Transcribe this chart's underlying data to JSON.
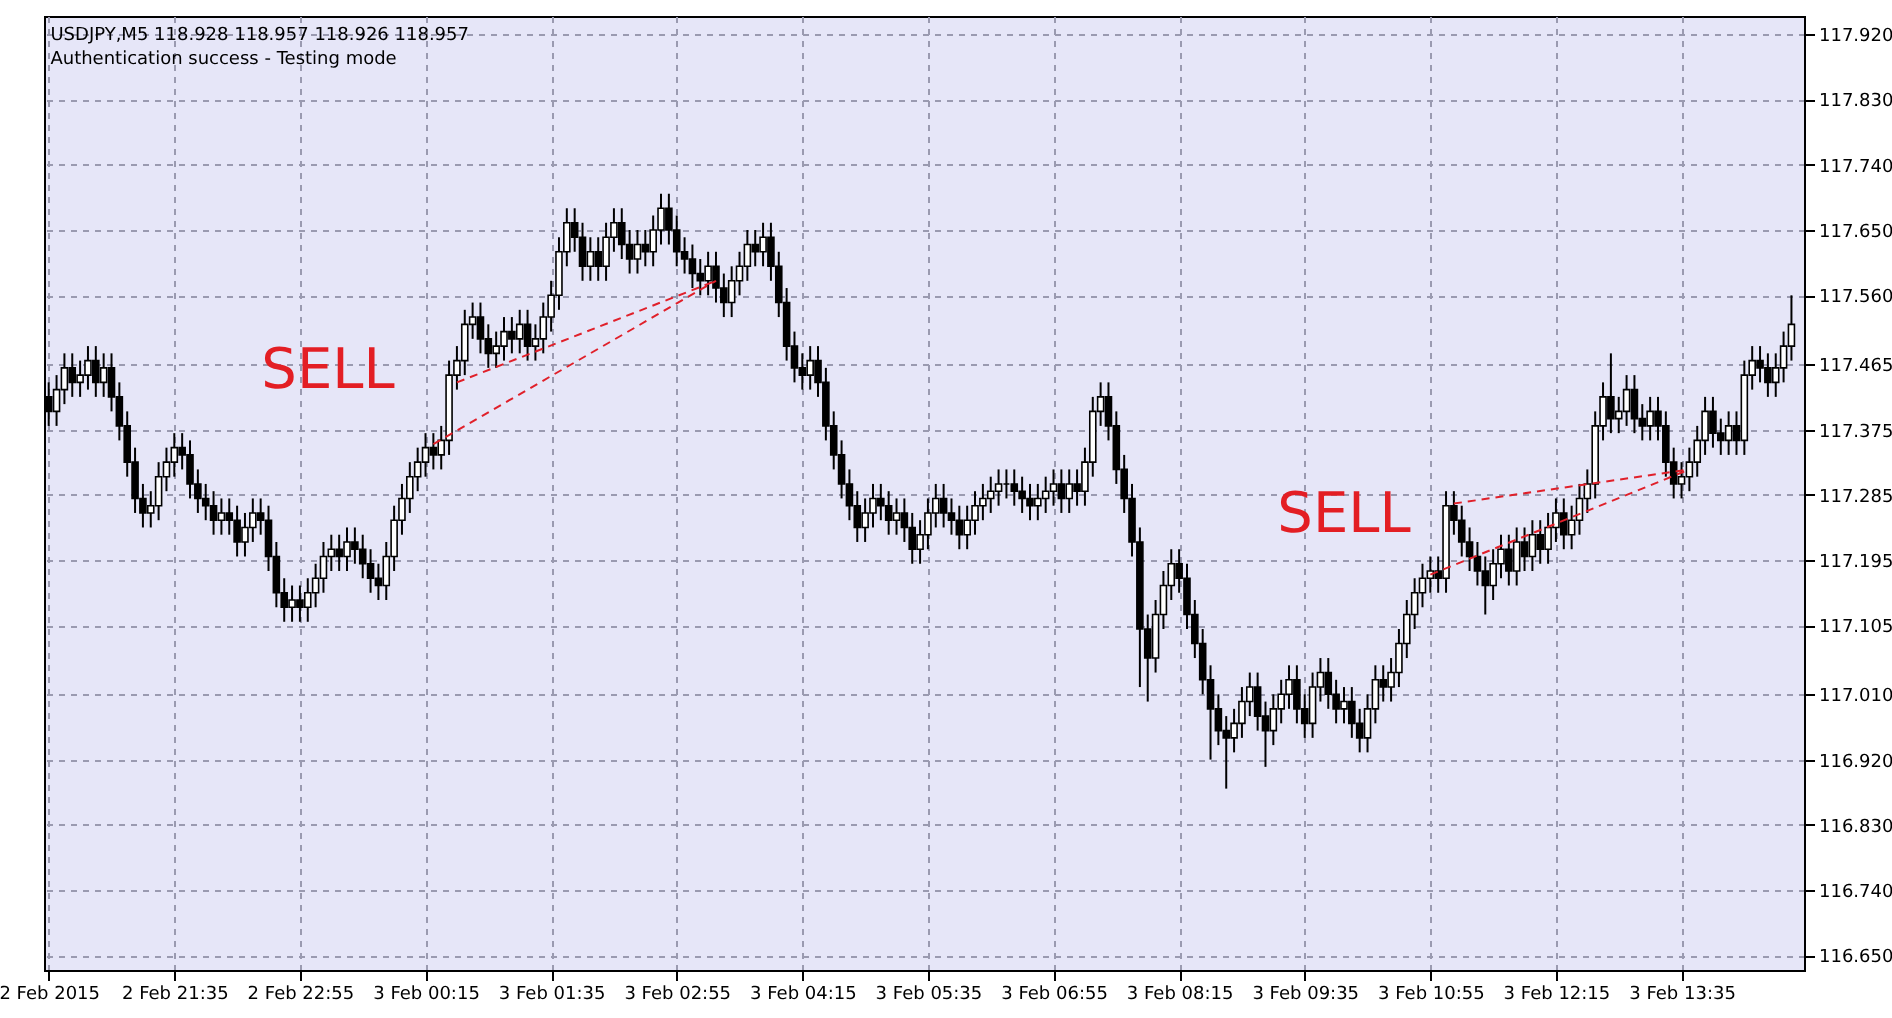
{
  "chart_data": {
    "type": "candlestick",
    "title": "USDJPY,M5  118.928 118.957 118.926 118.957",
    "subtitle": "Authentication success - Testing mode",
    "x": [
      "2015-02-02T20:15",
      "2015-02-02T20:20",
      "2015-02-02T20:25",
      "2015-02-02T20:30",
      "2015-02-02T20:35",
      "2015-02-02T20:40",
      "2015-02-02T20:45",
      "2015-02-02T20:50",
      "2015-02-02T20:55",
      "2015-02-02T21:00",
      "2015-02-02T21:05",
      "2015-02-02T21:10",
      "2015-02-02T21:15",
      "2015-02-02T21:20",
      "2015-02-02T21:25",
      "2015-02-02T21:30",
      "2015-02-02T21:35",
      "2015-02-02T21:40",
      "2015-02-02T21:45",
      "2015-02-02T21:50",
      "2015-02-02T21:55",
      "2015-02-02T22:00",
      "2015-02-02T22:05",
      "2015-02-02T22:10",
      "2015-02-02T22:15",
      "2015-02-02T22:20",
      "2015-02-02T22:25",
      "2015-02-02T22:30",
      "2015-02-02T22:35",
      "2015-02-02T22:40",
      "2015-02-02T22:45",
      "2015-02-02T22:50",
      "2015-02-02T22:55",
      "2015-02-02T23:00",
      "2015-02-02T23:05",
      "2015-02-02T23:10",
      "2015-02-02T23:15",
      "2015-02-02T23:20",
      "2015-02-02T23:25",
      "2015-02-02T23:30",
      "2015-02-02T23:35",
      "2015-02-02T23:40",
      "2015-02-02T23:45",
      "2015-02-02T23:50",
      "2015-02-02T23:55",
      "2015-02-03T00:00",
      "2015-02-03T00:05",
      "2015-02-03T00:10",
      "2015-02-03T00:15",
      "2015-02-03T00:20",
      "2015-02-03T00:25",
      "2015-02-03T00:30",
      "2015-02-03T00:35",
      "2015-02-03T00:40",
      "2015-02-03T00:45",
      "2015-02-03T00:50",
      "2015-02-03T00:55",
      "2015-02-03T01:00",
      "2015-02-03T01:05",
      "2015-02-03T01:10",
      "2015-02-03T01:15",
      "2015-02-03T01:20",
      "2015-02-03T01:25",
      "2015-02-03T01:30",
      "2015-02-03T01:35",
      "2015-02-03T01:40",
      "2015-02-03T01:45",
      "2015-02-03T01:50",
      "2015-02-03T01:55",
      "2015-02-03T02:00",
      "2015-02-03T02:05",
      "2015-02-03T02:10",
      "2015-02-03T02:15",
      "2015-02-03T02:20",
      "2015-02-03T02:25",
      "2015-02-03T02:30",
      "2015-02-03T02:35",
      "2015-02-03T02:40",
      "2015-02-03T02:45",
      "2015-02-03T02:50",
      "2015-02-03T02:55",
      "2015-02-03T03:00",
      "2015-02-03T03:05",
      "2015-02-03T03:10",
      "2015-02-03T03:15",
      "2015-02-03T03:20",
      "2015-02-03T03:25",
      "2015-02-03T03:30",
      "2015-02-03T03:35",
      "2015-02-03T03:40",
      "2015-02-03T03:45",
      "2015-02-03T03:50",
      "2015-02-03T03:55",
      "2015-02-03T04:00",
      "2015-02-03T04:05",
      "2015-02-03T04:10",
      "2015-02-03T04:15",
      "2015-02-03T04:20",
      "2015-02-03T04:25",
      "2015-02-03T04:30",
      "2015-02-03T04:35",
      "2015-02-03T04:40",
      "2015-02-03T04:45",
      "2015-02-03T04:50",
      "2015-02-03T04:55",
      "2015-02-03T05:00",
      "2015-02-03T05:05",
      "2015-02-03T05:10",
      "2015-02-03T05:15",
      "2015-02-03T05:20",
      "2015-02-03T05:25",
      "2015-02-03T05:30",
      "2015-02-03T05:35",
      "2015-02-03T05:40",
      "2015-02-03T05:45",
      "2015-02-03T05:50",
      "2015-02-03T05:55",
      "2015-02-03T06:00",
      "2015-02-03T06:05",
      "2015-02-03T06:10",
      "2015-02-03T06:15",
      "2015-02-03T06:20",
      "2015-02-03T06:25",
      "2015-02-03T06:30",
      "2015-02-03T06:35",
      "2015-02-03T06:40",
      "2015-02-03T06:45",
      "2015-02-03T06:50",
      "2015-02-03T06:55",
      "2015-02-03T07:00",
      "2015-02-03T07:05",
      "2015-02-03T07:10",
      "2015-02-03T07:15",
      "2015-02-03T07:20",
      "2015-02-03T07:25",
      "2015-02-03T07:30",
      "2015-02-03T07:35",
      "2015-02-03T07:40",
      "2015-02-03T07:45",
      "2015-02-03T07:50",
      "2015-02-03T07:55",
      "2015-02-03T08:00",
      "2015-02-03T08:05",
      "2015-02-03T08:10",
      "2015-02-03T08:15",
      "2015-02-03T08:20",
      "2015-02-03T08:25",
      "2015-02-03T08:30",
      "2015-02-03T08:35",
      "2015-02-03T08:40",
      "2015-02-03T08:45",
      "2015-02-03T08:50",
      "2015-02-03T08:55",
      "2015-02-03T09:00",
      "2015-02-03T09:05",
      "2015-02-03T09:10",
      "2015-02-03T09:15",
      "2015-02-03T09:20",
      "2015-02-03T09:25",
      "2015-02-03T09:30",
      "2015-02-03T09:35",
      "2015-02-03T09:40",
      "2015-02-03T09:45",
      "2015-02-03T09:50",
      "2015-02-03T09:55",
      "2015-02-03T10:00",
      "2015-02-03T10:05",
      "2015-02-03T10:10",
      "2015-02-03T10:15",
      "2015-02-03T10:20",
      "2015-02-03T10:25",
      "2015-02-03T10:30",
      "2015-02-03T10:35",
      "2015-02-03T10:40",
      "2015-02-03T10:45",
      "2015-02-03T10:50",
      "2015-02-03T10:55",
      "2015-02-03T11:00",
      "2015-02-03T11:05",
      "2015-02-03T11:10",
      "2015-02-03T11:15",
      "2015-02-03T11:20",
      "2015-02-03T11:25",
      "2015-02-03T11:30",
      "2015-02-03T11:35",
      "2015-02-03T11:40",
      "2015-02-03T11:45",
      "2015-02-03T11:50",
      "2015-02-03T11:55",
      "2015-02-03T12:00",
      "2015-02-03T12:05",
      "2015-02-03T12:10",
      "2015-02-03T12:15",
      "2015-02-03T12:20",
      "2015-02-03T12:25",
      "2015-02-03T12:30",
      "2015-02-03T12:35",
      "2015-02-03T12:40",
      "2015-02-03T12:45",
      "2015-02-03T12:50",
      "2015-02-03T12:55",
      "2015-02-03T13:00",
      "2015-02-03T13:05",
      "2015-02-03T13:10",
      "2015-02-03T13:15",
      "2015-02-03T13:20",
      "2015-02-03T13:25",
      "2015-02-03T13:30",
      "2015-02-03T13:35",
      "2015-02-03T13:40",
      "2015-02-03T13:45",
      "2015-02-03T13:50",
      "2015-02-03T13:55",
      "2015-02-03T14:00",
      "2015-02-03T14:05",
      "2015-02-03T14:10",
      "2015-02-03T14:15",
      "2015-02-03T14:20",
      "2015-02-03T14:25",
      "2015-02-03T14:30",
      "2015-02-03T14:35",
      "2015-02-03T14:40",
      "2015-02-03T14:45"
    ],
    "ohlc": [
      [
        117.42,
        117.44,
        117.38,
        117.4
      ],
      [
        117.4,
        117.45,
        117.38,
        117.43
      ],
      [
        117.43,
        117.48,
        117.41,
        117.46
      ],
      [
        117.46,
        117.48,
        117.42,
        117.44
      ],
      [
        117.44,
        117.47,
        117.42,
        117.45
      ],
      [
        117.45,
        117.49,
        117.43,
        117.47
      ],
      [
        117.47,
        117.49,
        117.42,
        117.44
      ],
      [
        117.44,
        117.48,
        117.42,
        117.46
      ],
      [
        117.46,
        117.48,
        117.4,
        117.42
      ],
      [
        117.42,
        117.44,
        117.36,
        117.38
      ],
      [
        117.38,
        117.4,
        117.31,
        117.33
      ],
      [
        117.33,
        117.35,
        117.26,
        117.28
      ],
      [
        117.28,
        117.3,
        117.24,
        117.26
      ],
      [
        117.26,
        117.29,
        117.24,
        117.27
      ],
      [
        117.27,
        117.33,
        117.25,
        117.31
      ],
      [
        117.31,
        117.35,
        117.29,
        117.33
      ],
      [
        117.33,
        117.37,
        117.31,
        117.35
      ],
      [
        117.35,
        117.37,
        117.32,
        117.34
      ],
      [
        117.34,
        117.36,
        117.28,
        117.3
      ],
      [
        117.3,
        117.32,
        117.26,
        117.28
      ],
      [
        117.28,
        117.3,
        117.25,
        117.27
      ],
      [
        117.27,
        117.29,
        117.23,
        117.25
      ],
      [
        117.25,
        117.28,
        117.23,
        117.26
      ],
      [
        117.26,
        117.28,
        117.23,
        117.25
      ],
      [
        117.25,
        117.27,
        117.2,
        117.22
      ],
      [
        117.22,
        117.26,
        117.2,
        117.24
      ],
      [
        117.24,
        117.28,
        117.22,
        117.26
      ],
      [
        117.26,
        117.28,
        117.23,
        117.25
      ],
      [
        117.25,
        117.27,
        117.18,
        117.2
      ],
      [
        117.2,
        117.22,
        117.13,
        117.15
      ],
      [
        117.15,
        117.17,
        117.11,
        117.13
      ],
      [
        117.13,
        117.16,
        117.11,
        117.14
      ],
      [
        117.14,
        117.16,
        117.11,
        117.13
      ],
      [
        117.13,
        117.17,
        117.11,
        117.15
      ],
      [
        117.15,
        117.19,
        117.13,
        117.17
      ],
      [
        117.17,
        117.22,
        117.15,
        117.2
      ],
      [
        117.2,
        117.23,
        117.18,
        117.21
      ],
      [
        117.21,
        117.23,
        117.18,
        117.2
      ],
      [
        117.2,
        117.24,
        117.18,
        117.22
      ],
      [
        117.22,
        117.24,
        117.19,
        117.21
      ],
      [
        117.21,
        117.23,
        117.17,
        117.19
      ],
      [
        117.19,
        117.21,
        117.15,
        117.17
      ],
      [
        117.17,
        117.19,
        117.14,
        117.16
      ],
      [
        117.16,
        117.22,
        117.14,
        117.2
      ],
      [
        117.2,
        117.27,
        117.18,
        117.25
      ],
      [
        117.25,
        117.3,
        117.23,
        117.28
      ],
      [
        117.28,
        117.33,
        117.26,
        117.31
      ],
      [
        117.31,
        117.35,
        117.29,
        117.33
      ],
      [
        117.33,
        117.37,
        117.31,
        117.35
      ],
      [
        117.35,
        117.37,
        117.32,
        117.34
      ],
      [
        117.34,
        117.38,
        117.32,
        117.36
      ],
      [
        117.36,
        117.47,
        117.34,
        117.45
      ],
      [
        117.45,
        117.49,
        117.43,
        117.47
      ],
      [
        117.47,
        117.54,
        117.45,
        117.52
      ],
      [
        117.52,
        117.55,
        117.5,
        117.53
      ],
      [
        117.53,
        117.55,
        117.48,
        117.5
      ],
      [
        117.5,
        117.52,
        117.46,
        117.48
      ],
      [
        117.48,
        117.51,
        117.46,
        117.49
      ],
      [
        117.49,
        117.53,
        117.47,
        117.51
      ],
      [
        117.51,
        117.53,
        117.48,
        117.5
      ],
      [
        117.5,
        117.54,
        117.48,
        117.52
      ],
      [
        117.52,
        117.54,
        117.47,
        117.49
      ],
      [
        117.49,
        117.52,
        117.47,
        117.5
      ],
      [
        117.5,
        117.55,
        117.48,
        117.53
      ],
      [
        117.53,
        117.58,
        117.51,
        117.56
      ],
      [
        117.56,
        117.64,
        117.54,
        117.62
      ],
      [
        117.62,
        117.68,
        117.6,
        117.66
      ],
      [
        117.66,
        117.68,
        117.62,
        117.64
      ],
      [
        117.64,
        117.66,
        117.58,
        117.6
      ],
      [
        117.6,
        117.64,
        117.58,
        117.62
      ],
      [
        117.62,
        117.64,
        117.58,
        117.6
      ],
      [
        117.6,
        117.66,
        117.58,
        117.64
      ],
      [
        117.64,
        117.68,
        117.62,
        117.66
      ],
      [
        117.66,
        117.68,
        117.61,
        117.63
      ],
      [
        117.63,
        117.65,
        117.59,
        117.61
      ],
      [
        117.61,
        117.65,
        117.59,
        117.63
      ],
      [
        117.63,
        117.65,
        117.6,
        117.62
      ],
      [
        117.62,
        117.67,
        117.6,
        117.65
      ],
      [
        117.65,
        117.7,
        117.63,
        117.68
      ],
      [
        117.68,
        117.7,
        117.63,
        117.65
      ],
      [
        117.65,
        117.67,
        117.6,
        117.62
      ],
      [
        117.62,
        117.64,
        117.59,
        117.61
      ],
      [
        117.61,
        117.63,
        117.57,
        117.59
      ],
      [
        117.59,
        117.61,
        117.56,
        117.58
      ],
      [
        117.58,
        117.62,
        117.56,
        117.6
      ],
      [
        117.6,
        117.62,
        117.55,
        117.57
      ],
      [
        117.57,
        117.59,
        117.53,
        117.55
      ],
      [
        117.55,
        117.6,
        117.53,
        117.58
      ],
      [
        117.58,
        117.62,
        117.56,
        117.6
      ],
      [
        117.6,
        117.65,
        117.58,
        117.63
      ],
      [
        117.63,
        117.65,
        117.6,
        117.62
      ],
      [
        117.62,
        117.66,
        117.6,
        117.64
      ],
      [
        117.64,
        117.66,
        117.58,
        117.6
      ],
      [
        117.6,
        117.62,
        117.53,
        117.55
      ],
      [
        117.55,
        117.57,
        117.47,
        117.49
      ],
      [
        117.49,
        117.51,
        117.44,
        117.46
      ],
      [
        117.46,
        117.48,
        117.43,
        117.45
      ],
      [
        117.45,
        117.49,
        117.43,
        117.47
      ],
      [
        117.47,
        117.49,
        117.42,
        117.44
      ],
      [
        117.44,
        117.46,
        117.36,
        117.38
      ],
      [
        117.38,
        117.4,
        117.32,
        117.34
      ],
      [
        117.34,
        117.36,
        117.28,
        117.3
      ],
      [
        117.3,
        117.32,
        117.25,
        117.27
      ],
      [
        117.27,
        117.29,
        117.22,
        117.24
      ],
      [
        117.24,
        117.28,
        117.22,
        117.26
      ],
      [
        117.26,
        117.3,
        117.24,
        117.28
      ],
      [
        117.28,
        117.3,
        117.25,
        117.27
      ],
      [
        117.27,
        117.29,
        117.23,
        117.25
      ],
      [
        117.25,
        117.28,
        117.23,
        117.26
      ],
      [
        117.26,
        117.28,
        117.22,
        117.24
      ],
      [
        117.24,
        117.26,
        117.19,
        117.21
      ],
      [
        117.21,
        117.25,
        117.19,
        117.23
      ],
      [
        117.23,
        117.28,
        117.21,
        117.26
      ],
      [
        117.26,
        117.3,
        117.24,
        117.28
      ],
      [
        117.28,
        117.3,
        117.24,
        117.26
      ],
      [
        117.26,
        117.28,
        117.23,
        117.25
      ],
      [
        117.25,
        117.27,
        117.21,
        117.23
      ],
      [
        117.23,
        117.27,
        117.21,
        117.25
      ],
      [
        117.25,
        117.29,
        117.23,
        117.27
      ],
      [
        117.27,
        117.3,
        117.25,
        117.28
      ],
      [
        117.28,
        117.31,
        117.26,
        117.29
      ],
      [
        117.29,
        117.32,
        117.27,
        117.3
      ],
      [
        117.3,
        117.32,
        117.28,
        117.3
      ],
      [
        117.3,
        117.32,
        117.27,
        117.29
      ],
      [
        117.29,
        117.31,
        117.26,
        117.28
      ],
      [
        117.28,
        117.3,
        117.25,
        117.27
      ],
      [
        117.27,
        117.3,
        117.25,
        117.28
      ],
      [
        117.28,
        117.31,
        117.26,
        117.29
      ],
      [
        117.29,
        117.32,
        117.27,
        117.3
      ],
      [
        117.3,
        117.32,
        117.26,
        117.28
      ],
      [
        117.28,
        117.32,
        117.26,
        117.3
      ],
      [
        117.3,
        117.32,
        117.27,
        117.29
      ],
      [
        117.29,
        117.35,
        117.27,
        117.33
      ],
      [
        117.33,
        117.42,
        117.31,
        117.4
      ],
      [
        117.4,
        117.44,
        117.38,
        117.42
      ],
      [
        117.42,
        117.44,
        117.36,
        117.38
      ],
      [
        117.38,
        117.4,
        117.3,
        117.32
      ],
      [
        117.32,
        117.34,
        117.26,
        117.28
      ],
      [
        117.28,
        117.3,
        117.2,
        117.22
      ],
      [
        117.22,
        117.24,
        117.02,
        117.1
      ],
      [
        117.1,
        117.12,
        117.0,
        117.06
      ],
      [
        117.06,
        117.14,
        117.04,
        117.12
      ],
      [
        117.12,
        117.18,
        117.1,
        117.16
      ],
      [
        117.16,
        117.21,
        117.14,
        117.19
      ],
      [
        117.19,
        117.21,
        117.15,
        117.17
      ],
      [
        117.17,
        117.19,
        117.1,
        117.12
      ],
      [
        117.12,
        117.14,
        117.06,
        117.08
      ],
      [
        117.08,
        117.1,
        117.01,
        117.03
      ],
      [
        117.03,
        117.05,
        116.92,
        116.99
      ],
      [
        116.99,
        117.01,
        116.94,
        116.96
      ],
      [
        116.96,
        116.98,
        116.88,
        116.95
      ],
      [
        116.95,
        116.99,
        116.93,
        116.97
      ],
      [
        116.97,
        117.02,
        116.95,
        117.0
      ],
      [
        117.0,
        117.04,
        116.98,
        117.02
      ],
      [
        117.02,
        117.04,
        116.96,
        116.98
      ],
      [
        116.98,
        117.0,
        116.91,
        116.96
      ],
      [
        116.96,
        117.01,
        116.94,
        116.99
      ],
      [
        116.99,
        117.03,
        116.97,
        117.01
      ],
      [
        117.01,
        117.05,
        116.99,
        117.03
      ],
      [
        117.03,
        117.05,
        116.97,
        116.99
      ],
      [
        116.99,
        117.01,
        116.95,
        116.97
      ],
      [
        116.97,
        117.04,
        116.95,
        117.02
      ],
      [
        117.02,
        117.06,
        117.0,
        117.04
      ],
      [
        117.04,
        117.06,
        116.99,
        117.01
      ],
      [
        117.01,
        117.03,
        116.97,
        116.99
      ],
      [
        116.99,
        117.02,
        116.97,
        117.0
      ],
      [
        117.0,
        117.02,
        116.95,
        116.97
      ],
      [
        116.97,
        116.99,
        116.93,
        116.95
      ],
      [
        116.95,
        117.01,
        116.93,
        116.99
      ],
      [
        116.99,
        117.05,
        116.97,
        117.03
      ],
      [
        117.03,
        117.05,
        117.0,
        117.02
      ],
      [
        117.02,
        117.06,
        117.0,
        117.04
      ],
      [
        117.04,
        117.1,
        117.02,
        117.08
      ],
      [
        117.08,
        117.14,
        117.06,
        117.12
      ],
      [
        117.12,
        117.17,
        117.1,
        117.15
      ],
      [
        117.15,
        117.19,
        117.13,
        117.17
      ],
      [
        117.17,
        117.2,
        117.15,
        117.18
      ],
      [
        117.18,
        117.2,
        117.15,
        117.17
      ],
      [
        117.17,
        117.29,
        117.15,
        117.27
      ],
      [
        117.27,
        117.29,
        117.23,
        117.25
      ],
      [
        117.25,
        117.27,
        117.2,
        117.22
      ],
      [
        117.22,
        117.24,
        117.18,
        117.2
      ],
      [
        117.2,
        117.22,
        117.16,
        117.18
      ],
      [
        117.18,
        117.2,
        117.12,
        117.16
      ],
      [
        117.16,
        117.21,
        117.14,
        117.19
      ],
      [
        117.19,
        117.23,
        117.17,
        117.21
      ],
      [
        117.21,
        117.23,
        117.16,
        117.18
      ],
      [
        117.18,
        117.24,
        117.16,
        117.22
      ],
      [
        117.22,
        117.24,
        117.18,
        117.2
      ],
      [
        117.2,
        117.25,
        117.18,
        117.23
      ],
      [
        117.23,
        117.25,
        117.19,
        117.21
      ],
      [
        117.21,
        117.26,
        117.19,
        117.24
      ],
      [
        117.24,
        117.28,
        117.22,
        117.26
      ],
      [
        117.26,
        117.28,
        117.21,
        117.23
      ],
      [
        117.23,
        117.27,
        117.21,
        117.25
      ],
      [
        117.25,
        117.3,
        117.23,
        117.28
      ],
      [
        117.28,
        117.32,
        117.26,
        117.3
      ],
      [
        117.3,
        117.4,
        117.28,
        117.38
      ],
      [
        117.38,
        117.44,
        117.36,
        117.42
      ],
      [
        117.42,
        117.48,
        117.37,
        117.39
      ],
      [
        117.39,
        117.42,
        117.37,
        117.4
      ],
      [
        117.4,
        117.45,
        117.38,
        117.43
      ],
      [
        117.43,
        117.45,
        117.37,
        117.39
      ],
      [
        117.39,
        117.41,
        117.36,
        117.38
      ],
      [
        117.38,
        117.42,
        117.36,
        117.4
      ],
      [
        117.4,
        117.42,
        117.36,
        117.38
      ],
      [
        117.38,
        117.4,
        117.31,
        117.33
      ],
      [
        117.33,
        117.35,
        117.28,
        117.3
      ],
      [
        117.3,
        117.33,
        117.28,
        117.31
      ],
      [
        117.31,
        117.35,
        117.29,
        117.33
      ],
      [
        117.33,
        117.38,
        117.31,
        117.36
      ],
      [
        117.36,
        117.42,
        117.34,
        117.4
      ],
      [
        117.4,
        117.42,
        117.35,
        117.37
      ],
      [
        117.37,
        117.39,
        117.34,
        117.36
      ],
      [
        117.36,
        117.4,
        117.34,
        117.38
      ],
      [
        117.38,
        117.4,
        117.34,
        117.36
      ],
      [
        117.36,
        117.47,
        117.34,
        117.45
      ],
      [
        117.45,
        117.49,
        117.43,
        117.47
      ],
      [
        117.47,
        117.49,
        117.44,
        117.46
      ],
      [
        117.46,
        117.48,
        117.42,
        117.44
      ],
      [
        117.44,
        117.48,
        117.42,
        117.46
      ],
      [
        117.46,
        117.51,
        117.44,
        117.49
      ],
      [
        117.49,
        117.56,
        117.47,
        117.52
      ]
    ],
    "series": [
      {
        "type": "line",
        "color": "#e0202a",
        "x": [
          "2015-02-03T00:35",
          "2015-02-03T03:20"
        ],
        "values": [
          117.44,
          117.58
        ]
      },
      {
        "type": "line",
        "color": "#e0202a",
        "x": [
          "2015-02-03T00:20",
          "2015-02-03T03:20"
        ],
        "values": [
          117.355,
          117.58
        ]
      },
      {
        "type": "line",
        "color": "#e0202a",
        "x": [
          "2015-02-03T11:10",
          "2015-02-03T13:40"
        ],
        "values": [
          117.273,
          117.32
        ]
      },
      {
        "type": "line",
        "color": "#e0202a",
        "x": [
          "2015-02-03T10:55",
          "2015-02-03T13:40"
        ],
        "values": [
          117.175,
          117.32
        ]
      }
    ],
    "line_style": "dashed",
    "annotations": [
      "SELL",
      "SELL"
    ],
    "xlim": [
      "2015-02-02T20:12",
      "2015-02-03T14:53"
    ],
    "xticks": [
      {
        "value": "2015-02-02T20:15",
        "label": "2 Feb 2015"
      },
      {
        "value": "2015-02-02T21:35",
        "label": "2 Feb 21:35"
      },
      {
        "value": "2015-02-02T22:55",
        "label": "2 Feb 22:55"
      },
      {
        "value": "2015-02-03T00:15",
        "label": "3 Feb 00:15"
      },
      {
        "value": "2015-02-03T01:35",
        "label": "3 Feb 01:35"
      },
      {
        "value": "2015-02-03T02:55",
        "label": "3 Feb 02:55"
      },
      {
        "value": "2015-02-03T04:15",
        "label": "3 Feb 04:15"
      },
      {
        "value": "2015-02-03T05:35",
        "label": "3 Feb 05:35"
      },
      {
        "value": "2015-02-03T06:55",
        "label": "3 Feb 06:55"
      },
      {
        "value": "2015-02-03T08:15",
        "label": "3 Feb 08:15"
      },
      {
        "value": "2015-02-03T09:35",
        "label": "3 Feb 09:35"
      },
      {
        "value": "2015-02-03T10:55",
        "label": "3 Feb 10:55"
      },
      {
        "value": "2015-02-03T12:15",
        "label": "3 Feb 12:15"
      },
      {
        "value": "2015-02-03T13:35",
        "label": "3 Feb 13:35"
      }
    ],
    "ylim": [
      116.63,
      117.945
    ],
    "yticks": [
      {
        "value": 116.65,
        "label": "116.650"
      },
      {
        "value": 116.74,
        "label": "116.740"
      },
      {
        "value": 116.83,
        "label": "116.830"
      },
      {
        "value": 116.92,
        "label": "116.920"
      },
      {
        "value": 117.01,
        "label": "117.010"
      },
      {
        "value": 117.105,
        "label": "117.105"
      },
      {
        "value": 117.195,
        "label": "117.195"
      },
      {
        "value": 117.285,
        "label": "117.285"
      },
      {
        "value": 117.375,
        "label": "117.375"
      },
      {
        "value": 117.465,
        "label": "117.465"
      },
      {
        "value": 117.56,
        "label": "117.560"
      },
      {
        "value": 117.65,
        "label": "117.650"
      },
      {
        "value": 117.74,
        "label": "117.740"
      },
      {
        "value": 117.83,
        "label": "117.830"
      },
      {
        "value": 117.92,
        "label": "117.920"
      }
    ],
    "grid": true
  }
}
